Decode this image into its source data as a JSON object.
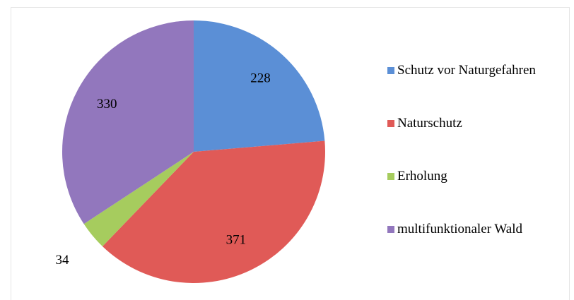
{
  "chart_data": {
    "type": "pie",
    "categories": [
      "Schutz vor Naturgefahren",
      "Naturschutz",
      "Erholung",
      "multifunktionaler Wald"
    ],
    "values": [
      228,
      371,
      34,
      330
    ],
    "colors": [
      "#5b8fd6",
      "#e05a57",
      "#a6cc5e",
      "#9277bd"
    ],
    "legend": "right"
  }
}
